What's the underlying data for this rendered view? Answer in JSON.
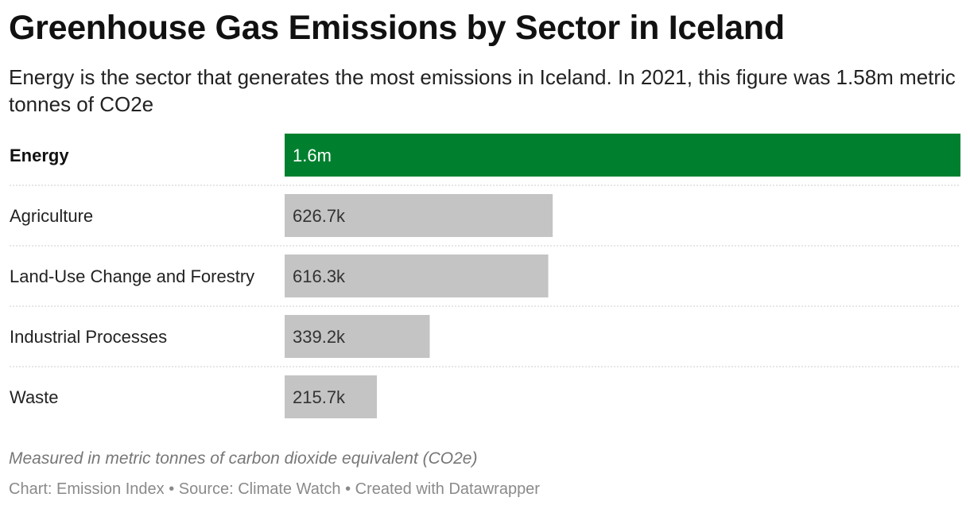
{
  "title": "Greenhouse Gas Emissions by Sector in Iceland",
  "subtitle": "Energy is the sector that generates the most emissions in Iceland. In 2021, this figure was 1.58m metric tonnes of CO2e",
  "notes": "Measured in metric tonnes of carbon dioxide equivalent (CO2e)",
  "footer": "Chart: Emission Index • Source: Climate Watch • Created with Datawrapper",
  "colors": {
    "highlight": "#00802f",
    "bar": "#c4c4c4",
    "separator": "#cccccc"
  },
  "chart_data": {
    "type": "bar",
    "orientation": "horizontal",
    "categories": [
      "Energy",
      "Agriculture",
      "Land-Use Change and Forestry",
      "Industrial Processes",
      "Waste"
    ],
    "values": [
      1580000,
      626700,
      616300,
      339200,
      215700
    ],
    "value_labels": [
      "1.6m",
      "626.7k",
      "616.3k",
      "339.2k",
      "215.7k"
    ],
    "highlight_index": 0,
    "xlim": [
      0,
      1580000
    ],
    "grid": false,
    "legend": "none"
  }
}
